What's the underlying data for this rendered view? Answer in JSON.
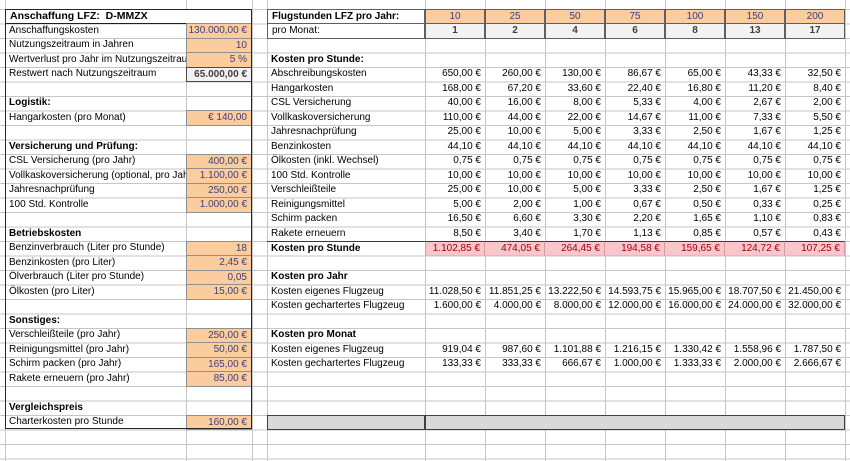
{
  "sheet": {
    "left": {
      "rows": [
        {
          "t": "header",
          "label": "Anschaffung LFZ:  D-MMZX"
        },
        {
          "t": "input",
          "label": "Anschaffungskosten",
          "value": "130.000,00 €"
        },
        {
          "t": "input",
          "label": "Nutzungszeitraum in Jahren",
          "value": "10"
        },
        {
          "t": "input",
          "label": "Wertverlust pro Jahr im Nutzungszeitraum",
          "value": "5 %"
        },
        {
          "t": "output",
          "label": "Restwert nach Nutzungszeitraum",
          "value": "65.000,00 €"
        },
        {
          "t": "blank"
        },
        {
          "t": "section",
          "label": "Logistik:"
        },
        {
          "t": "input",
          "label": "Hangarkosten (pro Monat)",
          "value": "€ 140,00"
        },
        {
          "t": "blank"
        },
        {
          "t": "section",
          "label": "Versicherung und Prüfung:"
        },
        {
          "t": "input",
          "label": "CSL Versicherung (pro Jahr)",
          "value": "400,00 €"
        },
        {
          "t": "input",
          "label": "Vollkaskoversicherung (optional, pro Jahr)",
          "value": "1.100,00 €"
        },
        {
          "t": "input",
          "label": "Jahresnachprüfung",
          "value": "250,00 €"
        },
        {
          "t": "input",
          "label": "100 Std. Kontrolle",
          "value": "1.000,00 €"
        },
        {
          "t": "blank"
        },
        {
          "t": "section",
          "label": "Betriebskosten"
        },
        {
          "t": "input",
          "label": "Benzinverbrauch (Liter pro Stunde)",
          "value": "18"
        },
        {
          "t": "input",
          "label": "Benzinkosten (pro Liter)",
          "value": "2,45 €"
        },
        {
          "t": "input",
          "label": "Ölverbrauch (Liter pro Stunde)",
          "value": "0,05"
        },
        {
          "t": "input",
          "label": "Ölkosten (pro Liter)",
          "value": "15,00 €"
        },
        {
          "t": "blank"
        },
        {
          "t": "section",
          "label": "Sonstiges:"
        },
        {
          "t": "input",
          "label": "Verschleißteile (pro Jahr)",
          "value": "250,00 €"
        },
        {
          "t": "input",
          "label": "Reinigungsmittel (pro Jahr)",
          "value": "50,00 €"
        },
        {
          "t": "input",
          "label": "Schirm packen (pro Jahr)",
          "value": "165,00 €"
        },
        {
          "t": "input",
          "label": "Rakete erneuern (pro Jahr)",
          "value": "85,00 €"
        },
        {
          "t": "blank"
        },
        {
          "t": "section",
          "label": "Vergleichspreis"
        },
        {
          "t": "input",
          "label": "Charterkosten pro Stunde",
          "value": "160,00 €"
        },
        {
          "t": "blank"
        },
        {
          "t": "blank"
        }
      ]
    },
    "right": {
      "rows": [
        {
          "t": "hours",
          "label": "Flugstunden LFZ pro Jahr:",
          "values": [
            "10",
            "25",
            "50",
            "75",
            "100",
            "150",
            "200"
          ]
        },
        {
          "t": "months",
          "label": "pro Monat:",
          "values": [
            "1",
            "2",
            "4",
            "6",
            "8",
            "13",
            "17"
          ]
        },
        {
          "t": "blank"
        },
        {
          "t": "section",
          "label": "Kosten pro Stunde:"
        },
        {
          "t": "data",
          "label": "Abschreibungskosten",
          "values": [
            "650,00 €",
            "260,00 €",
            "130,00 €",
            "86,67 €",
            "65,00 €",
            "43,33 €",
            "32,50 €"
          ]
        },
        {
          "t": "data",
          "label": "Hangarkosten",
          "values": [
            "168,00 €",
            "67,20 €",
            "33,60 €",
            "22,40 €",
            "16,80 €",
            "11,20 €",
            "8,40 €"
          ]
        },
        {
          "t": "data",
          "label": "CSL Versicherung",
          "values": [
            "40,00 €",
            "16,00 €",
            "8,00 €",
            "5,33 €",
            "4,00 €",
            "2,67 €",
            "2,00 €"
          ]
        },
        {
          "t": "data",
          "label": "Vollkaskoversicherung",
          "values": [
            "110,00 €",
            "44,00 €",
            "22,00 €",
            "14,67 €",
            "11,00 €",
            "7,33 €",
            "5,50 €"
          ]
        },
        {
          "t": "data",
          "label": "Jahresnachprüfung",
          "values": [
            "25,00 €",
            "10,00 €",
            "5,00 €",
            "3,33 €",
            "2,50 €",
            "1,67 €",
            "1,25 €"
          ]
        },
        {
          "t": "data",
          "label": "Benzinkosten",
          "values": [
            "44,10 €",
            "44,10 €",
            "44,10 €",
            "44,10 €",
            "44,10 €",
            "44,10 €",
            "44,10 €"
          ]
        },
        {
          "t": "data",
          "label": "Ölkosten (inkl. Wechsel)",
          "values": [
            "0,75 €",
            "0,75 €",
            "0,75 €",
            "0,75 €",
            "0,75 €",
            "0,75 €",
            "0,75 €"
          ]
        },
        {
          "t": "data",
          "label": "100 Std. Kontrolle",
          "values": [
            "10,00 €",
            "10,00 €",
            "10,00 €",
            "10,00 €",
            "10,00 €",
            "10,00 €",
            "10,00 €"
          ]
        },
        {
          "t": "data",
          "label": "Verschleißteile",
          "values": [
            "25,00 €",
            "10,00 €",
            "5,00 €",
            "3,33 €",
            "2,50 €",
            "1,67 €",
            "1,25 €"
          ]
        },
        {
          "t": "data",
          "label": "Reinigungsmittel",
          "values": [
            "5,00 €",
            "2,00 €",
            "1,00 €",
            "0,67 €",
            "0,50 €",
            "0,33 €",
            "0,25 €"
          ]
        },
        {
          "t": "data",
          "label": "Schirm packen",
          "values": [
            "16,50 €",
            "6,60 €",
            "3,30 €",
            "2,20 €",
            "1,65 €",
            "1,10 €",
            "0,83 €"
          ]
        },
        {
          "t": "data",
          "label": "Rakete erneuern",
          "values": [
            "8,50 €",
            "3,40 €",
            "1,70 €",
            "1,13 €",
            "0,85 €",
            "0,57 €",
            "0,43 €"
          ]
        },
        {
          "t": "total",
          "label": "Kosten pro Stunde",
          "values": [
            "1.102,85 €",
            "474,05 €",
            "264,45 €",
            "194,58 €",
            "159,65 €",
            "124,72 €",
            "107,25 €"
          ]
        },
        {
          "t": "blank"
        },
        {
          "t": "section",
          "label": "Kosten pro Jahr"
        },
        {
          "t": "data",
          "label": "Kosten eigenes Flugzeug",
          "values": [
            "11.028,50 €",
            "11.851,25 €",
            "13.222,50 €",
            "14.593,75 €",
            "15.965,00 €",
            "18.707,50 €",
            "21.450,00 €"
          ]
        },
        {
          "t": "data",
          "label": "Kosten gechartertes Flugzeug",
          "values": [
            "1.600,00 €",
            "4.000,00 €",
            "8.000,00 €",
            "12.000,00 €",
            "16.000,00 €",
            "24.000,00 €",
            "32.000,00 €"
          ]
        },
        {
          "t": "blank"
        },
        {
          "t": "section",
          "label": "Kosten pro Monat"
        },
        {
          "t": "data",
          "label": "Kosten eigenes Flugzeug",
          "values": [
            "919,04 €",
            "987,60 €",
            "1.101,88 €",
            "1.216,15 €",
            "1.330,42 €",
            "1.558,96 €",
            "1.787,50 €"
          ]
        },
        {
          "t": "data",
          "label": "Kosten gechartertes Flugzeug",
          "values": [
            "133,33 €",
            "333,33 €",
            "666,67 €",
            "1.000,00 €",
            "1.333,33 €",
            "2.000,00 €",
            "2.666,67 €"
          ]
        },
        {
          "t": "blank"
        },
        {
          "t": "blank"
        },
        {
          "t": "blank"
        },
        {
          "t": "grayband"
        },
        {
          "t": "blank"
        },
        {
          "t": "blank"
        }
      ]
    }
  },
  "colors": {
    "input_fill": "#FACC9E",
    "input_text": "#3F3F76",
    "input_border": "#8F8F8F",
    "output_fill": "#F2F2F2",
    "output_text": "#3F3F3F",
    "bad_fill": "#F9C6CC",
    "bad_text": "#9C0006",
    "band_fill": "#D9D9D9",
    "gridline": "#C6C6C6",
    "table_outline": "#262626"
  }
}
